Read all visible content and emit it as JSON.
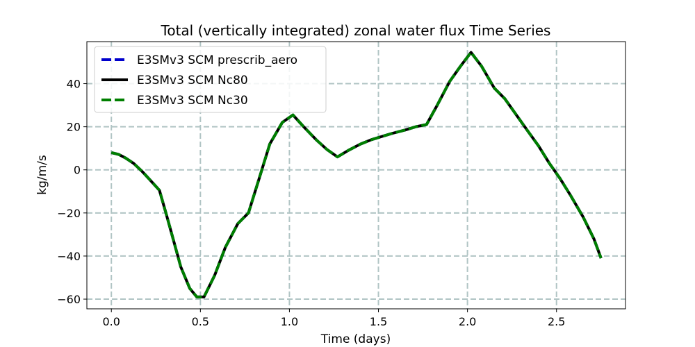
{
  "chart_data": {
    "type": "line",
    "title": "Total (vertically integrated) zonal water flux Time Series",
    "xlabel": "Time (days)",
    "ylabel": "kg/m/s",
    "xlim": [
      -0.1375,
      2.8875
    ],
    "ylim": [
      -64.5,
      59.5
    ],
    "xticks": [
      0.0,
      0.5,
      1.0,
      1.5,
      2.0,
      2.5
    ],
    "xtick_labels": [
      "0.0",
      "0.5",
      "1.0",
      "1.5",
      "2.0",
      "2.5"
    ],
    "yticks": [
      -60,
      -40,
      -20,
      0,
      20,
      40
    ],
    "ytick_labels": [
      "−60",
      "−40",
      "−20",
      "0",
      "20",
      "40"
    ],
    "grid": true,
    "legend_position": "upper-left",
    "x": [
      0.0,
      0.04,
      0.08,
      0.125,
      0.17,
      0.21,
      0.27,
      0.31,
      0.35,
      0.39,
      0.44,
      0.48,
      0.52,
      0.58,
      0.64,
      0.71,
      0.77,
      0.83,
      0.89,
      0.96,
      1.02,
      1.08,
      1.15,
      1.21,
      1.27,
      1.33,
      1.4,
      1.46,
      1.52,
      1.58,
      1.65,
      1.71,
      1.77,
      1.83,
      1.9,
      1.96,
      2.02,
      2.08,
      2.15,
      2.21,
      2.27,
      2.33,
      2.4,
      2.46,
      2.52,
      2.58,
      2.65,
      2.71,
      2.75
    ],
    "series": [
      {
        "name": "E3SMv3 SCM prescrib_aero",
        "color": "#0000cc",
        "style": "dashed",
        "values": [
          8,
          7.2,
          5.5,
          3.0,
          -0.5,
          -4.0,
          -9.5,
          -21,
          -33,
          -45,
          -55,
          -59,
          -59,
          -49,
          -36,
          -25,
          -20,
          -4,
          12,
          22,
          25.5,
          20,
          14,
          9.5,
          6,
          9,
          12,
          14,
          15.5,
          17,
          18.5,
          20,
          21,
          30,
          41,
          48,
          54.5,
          48,
          38,
          33,
          26,
          19,
          11,
          3,
          -4,
          -12,
          -22,
          -32,
          -41
        ]
      },
      {
        "name": "E3SMv3 SCM Nc80",
        "color": "#000000",
        "style": "solid",
        "values": [
          8,
          7.2,
          5.5,
          3.0,
          -0.5,
          -4.0,
          -9.5,
          -21,
          -33,
          -45,
          -55,
          -59,
          -59,
          -49,
          -36,
          -25,
          -20,
          -4,
          12,
          22,
          25.5,
          20,
          14,
          9.5,
          6,
          9,
          12,
          14,
          15.5,
          17,
          18.5,
          20,
          21,
          30,
          41,
          48,
          54.5,
          48,
          38,
          33,
          26,
          19,
          11,
          3,
          -4,
          -12,
          -22,
          -32,
          -41
        ]
      },
      {
        "name": "E3SMv3 SCM Nc30",
        "color": "#007f00",
        "style": "dashed",
        "values": [
          8,
          7.2,
          5.5,
          3.0,
          -0.5,
          -4.0,
          -9.5,
          -21,
          -33,
          -45,
          -55,
          -59,
          -59,
          -49,
          -36,
          -25,
          -20,
          -4,
          12,
          22,
          25.5,
          20,
          14,
          9.5,
          6,
          9,
          12,
          14,
          15.5,
          17,
          18.5,
          20,
          21,
          30,
          41,
          48,
          54.5,
          48,
          38,
          33,
          26,
          19,
          11,
          3,
          -4,
          -12,
          -22,
          -32,
          -41
        ]
      }
    ]
  }
}
